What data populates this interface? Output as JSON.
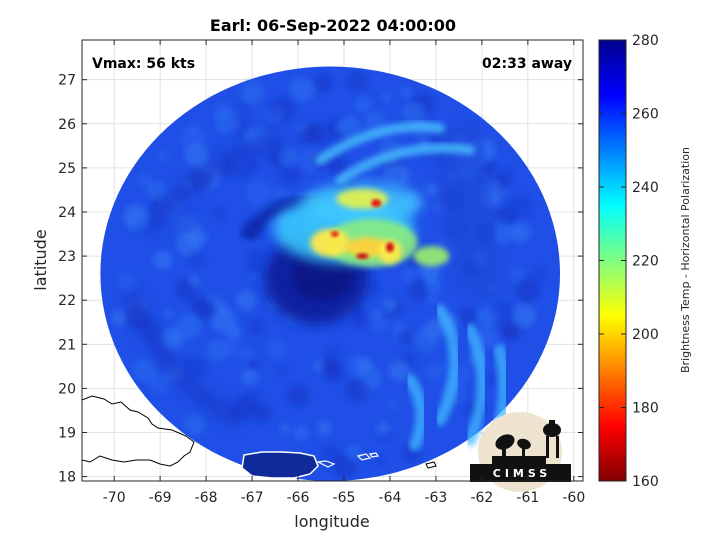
{
  "chart_data": {
    "type": "heatmap",
    "title": "Earl: 06-Sep-2022 04:00:00",
    "xlabel": "longitude",
    "ylabel": "latitude",
    "xlim": [
      -70.7,
      -59.8
    ],
    "ylim": [
      17.9,
      27.9
    ],
    "xticks": [
      -70,
      -69,
      -68,
      -67,
      -66,
      -65,
      -64,
      -63,
      -62,
      -61,
      -60
    ],
    "yticks": [
      18,
      19,
      20,
      21,
      22,
      23,
      24,
      25,
      26,
      27
    ],
    "grid": true,
    "annotations": {
      "vmax": "Vmax: 56 kts",
      "time_away": "02:33 away"
    },
    "storm_center": {
      "lon": -65.6,
      "lat": 22.5
    },
    "swath": {
      "center_lon": -65.3,
      "center_lat": 22.6,
      "radius_deg_lon": 5.0,
      "radius_deg_lat": 4.7
    },
    "colorbar": {
      "label": "Brightness Temp - Horizontal Polarization",
      "range": [
        160,
        280
      ],
      "ticks": [
        160,
        180,
        200,
        220,
        240,
        260,
        280
      ],
      "colormap": "jet"
    },
    "logo": "CIMSS"
  }
}
